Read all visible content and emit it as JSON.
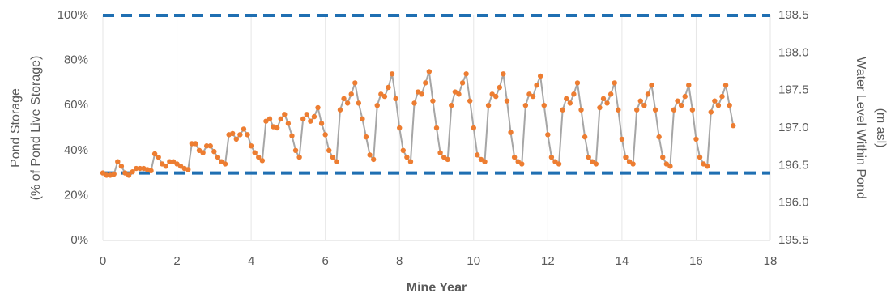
{
  "chart_data": {
    "type": "line",
    "xlabel": "Mine Year",
    "ylabel": [
      "Pond Storage",
      "(% of Pond Live Storage)"
    ],
    "y2label": [
      "Water Level Within Pond",
      "(m asl)"
    ],
    "xlim": [
      0,
      18
    ],
    "xticks": [
      0,
      2,
      4,
      6,
      8,
      10,
      12,
      14,
      16,
      18
    ],
    "ylim": [
      0,
      100
    ],
    "yticks": [
      {
        "value": 0,
        "label": "0%"
      },
      {
        "value": 20,
        "label": "20%"
      },
      {
        "value": 40,
        "label": "40%"
      },
      {
        "value": 60,
        "label": "60%"
      },
      {
        "value": 80,
        "label": "80%"
      },
      {
        "value": 100,
        "label": "100%"
      }
    ],
    "y2lim": [
      195.5,
      198.5
    ],
    "y2ticks": [
      195.5,
      {
        "value": 196,
        "label": "196.0"
      },
      196.5,
      {
        "value": 197,
        "label": "197.0"
      },
      197.5,
      {
        "value": 198,
        "label": "198.0"
      },
      198.5
    ],
    "grid": "x",
    "hlines": [
      {
        "value": 100,
        "color": "#1f6fb2"
      },
      {
        "value": 30,
        "color": "#1f6fb2"
      }
    ],
    "x": [
      0,
      0.1,
      0.2,
      0.3,
      0.4,
      0.5,
      0.6,
      0.7,
      0.8,
      0.9,
      1,
      1.1,
      1.2,
      1.3,
      1.4,
      1.5,
      1.6,
      1.7,
      1.8,
      1.9,
      2,
      2.1,
      2.2,
      2.3,
      2.4,
      2.5,
      2.6,
      2.7,
      2.8,
      2.9,
      3,
      3.1,
      3.2,
      3.3,
      3.4,
      3.5,
      3.6,
      3.7,
      3.8,
      3.9,
      4,
      4.1,
      4.2,
      4.3,
      4.4,
      4.5,
      4.6,
      4.7,
      4.8,
      4.9,
      5,
      5.1,
      5.2,
      5.3,
      5.4,
      5.5,
      5.6,
      5.7,
      5.8,
      5.9,
      6,
      6.1,
      6.2,
      6.3,
      6.4,
      6.5,
      6.6,
      6.7,
      6.8,
      6.9,
      7,
      7.1,
      7.2,
      7.3,
      7.4,
      7.5,
      7.6,
      7.7,
      7.8,
      7.9,
      8,
      8.1,
      8.2,
      8.3,
      8.4,
      8.5,
      8.6,
      8.7,
      8.8,
      8.9,
      9,
      9.1,
      9.2,
      9.3,
      9.4,
      9.5,
      9.6,
      9.7,
      9.8,
      9.9,
      10,
      10.1,
      10.2,
      10.3,
      10.4,
      10.5,
      10.6,
      10.7,
      10.8,
      10.9,
      11,
      11.1,
      11.2,
      11.3,
      11.4,
      11.5,
      11.6,
      11.7,
      11.8,
      11.9,
      12,
      12.1,
      12.2,
      12.3,
      12.4,
      12.5,
      12.6,
      12.7,
      12.8,
      12.9,
      13,
      13.1,
      13.2,
      13.3,
      13.4,
      13.5,
      13.6,
      13.7,
      13.8,
      13.9,
      14,
      14.1,
      14.2,
      14.3,
      14.4,
      14.5,
      14.6,
      14.7,
      14.8,
      14.9,
      15,
      15.1,
      15.2,
      15.3,
      15.4,
      15.5,
      15.6,
      15.7,
      15.8,
      15.9,
      16,
      16.1,
      16.2,
      16.3,
      16.4,
      16.5,
      16.6,
      16.7,
      16.8,
      16.9,
      17
    ],
    "series": [
      {
        "color": "#ed7d31",
        "line_color": "#a6a6a6",
        "values": [
          30,
          29,
          29,
          29.5,
          35,
          33,
          30,
          29,
          30.5,
          32,
          32,
          32,
          31.5,
          31,
          38.5,
          37,
          34,
          33,
          35,
          35,
          34,
          33,
          32,
          31.5,
          43,
          43,
          40,
          39,
          42,
          42,
          39.5,
          37,
          35,
          34,
          47,
          47.5,
          45,
          47,
          49.5,
          47,
          42,
          39,
          37,
          35.5,
          53,
          54,
          50.5,
          50,
          54,
          56,
          52,
          46.5,
          40,
          37,
          54,
          56,
          53,
          55,
          59,
          52,
          47,
          40,
          37,
          35,
          58,
          63,
          61,
          65,
          70,
          61,
          54,
          46,
          38,
          36,
          60,
          65,
          64,
          68,
          74,
          63,
          50,
          40,
          37,
          35,
          61,
          66,
          65,
          70,
          75,
          62,
          50,
          39,
          37,
          36,
          60,
          66,
          65,
          70,
          74,
          62,
          50,
          38,
          36,
          35,
          60,
          65,
          64,
          68,
          74,
          62,
          48,
          37,
          35,
          34,
          60,
          65,
          64,
          69,
          73,
          60,
          47,
          37,
          35,
          34,
          58,
          63,
          61,
          65,
          70,
          58,
          46,
          37,
          35,
          34,
          59,
          63,
          61,
          65,
          70,
          58,
          45,
          37,
          35,
          34,
          58,
          62,
          60,
          65,
          69,
          58,
          46,
          37,
          34,
          33,
          58,
          62,
          60,
          64,
          69,
          58,
          45,
          37,
          34,
          33,
          57,
          62,
          60,
          64,
          69,
          60,
          51
        ]
      }
    ]
  }
}
